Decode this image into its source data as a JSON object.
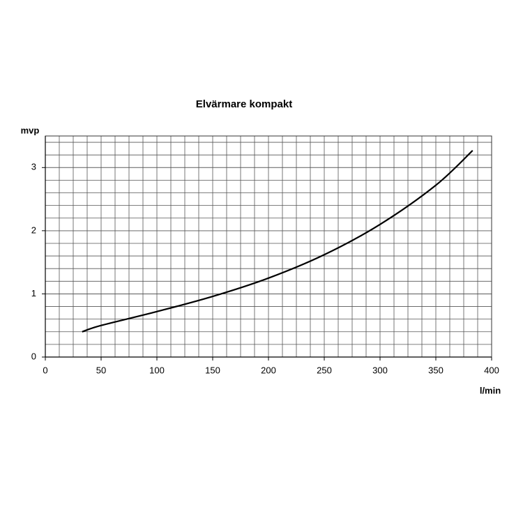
{
  "chart_data": {
    "type": "line",
    "title": "Elvärmare kompakt",
    "x_label": "l/min",
    "y_label": "mvp",
    "series": [
      {
        "color": "#000000",
        "x": [
          33,
          50,
          100,
          150,
          200,
          250,
          300,
          350,
          383
        ],
        "values": [
          0.4,
          0.5,
          0.72,
          0.96,
          1.25,
          1.62,
          2.1,
          2.72,
          3.27
        ]
      }
    ],
    "xlim": [
      0,
      400
    ],
    "xticks": [
      0,
      50,
      100,
      150,
      200,
      250,
      300,
      350,
      400
    ],
    "ylim": [
      0,
      3.5
    ],
    "yticks": [
      0,
      1,
      2,
      3
    ],
    "grid": true
  }
}
